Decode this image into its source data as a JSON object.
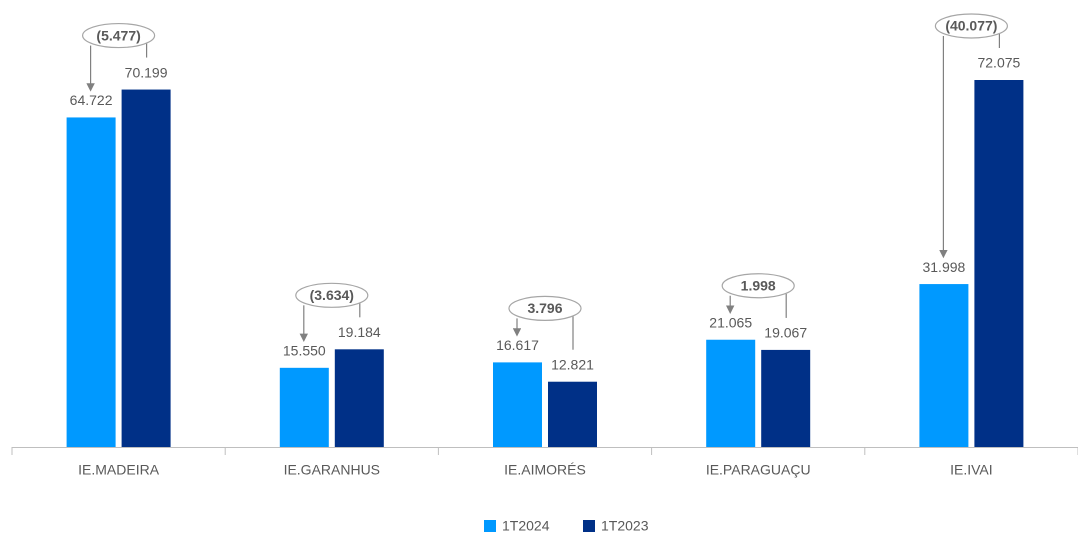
{
  "chart_data": {
    "type": "bar",
    "categories": [
      "IE.MADEIRA",
      "IE.GARANHUS",
      "IE.AIMORÉS",
      "IE.PARAGUAÇU",
      "IE.IVAI"
    ],
    "series": [
      {
        "name": "1T2024",
        "color": "#0099ff",
        "values": [
          64.722,
          15.55,
          16.617,
          21.065,
          31.998
        ],
        "value_labels": [
          "64.722",
          "15.550",
          "16.617",
          "21.065",
          "31.998"
        ]
      },
      {
        "name": "1T2023",
        "color": "#003087",
        "values": [
          70.199,
          19.184,
          12.821,
          19.067,
          72.075
        ],
        "value_labels": [
          "70.199",
          "19.184",
          "12.821",
          "19.067",
          "72.075"
        ]
      }
    ],
    "annotations": [
      "(5.477)",
      "(3.634)",
      "3.796",
      "1.998",
      "(40.077)"
    ],
    "legend": "bottom"
  }
}
